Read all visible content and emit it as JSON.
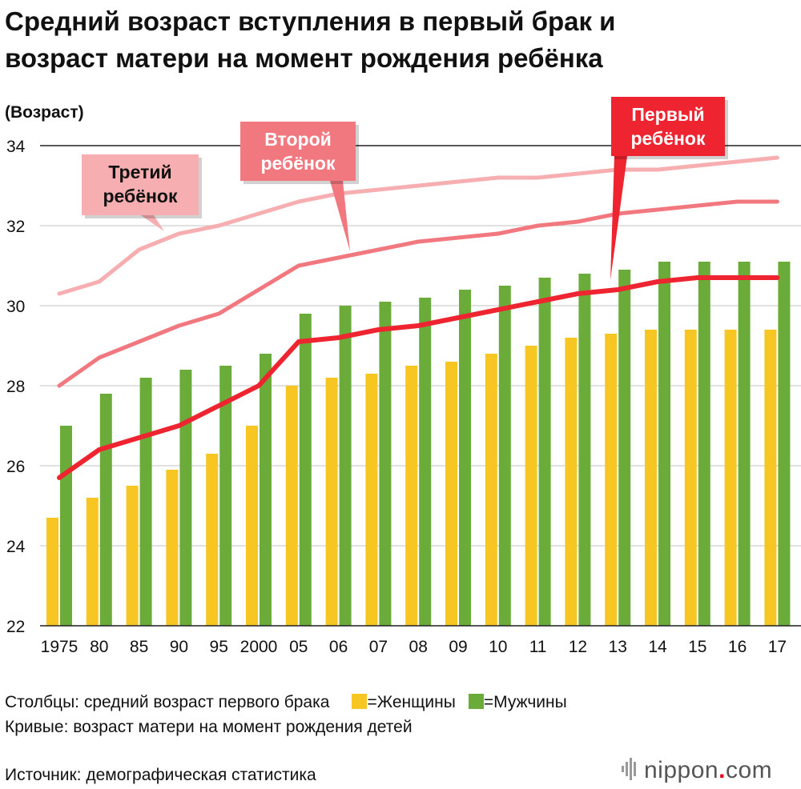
{
  "title_lines": [
    "Средний возраст вступления в первый брак и",
    "возраст матери на момент рождения ребёнка"
  ],
  "chart_data": {
    "type": "bar",
    "ylabel": "(Возраст)",
    "ylim": [
      22,
      34
    ],
    "yticks": [
      22,
      24,
      26,
      28,
      30,
      32,
      34
    ],
    "grid": true,
    "categories": [
      "1975",
      "80",
      "85",
      "90",
      "95",
      "2000",
      "05",
      "06",
      "07",
      "08",
      "09",
      "10",
      "11",
      "12",
      "13",
      "14",
      "15",
      "16",
      "17"
    ],
    "bar_series": [
      {
        "key": "women",
        "color": "#f7c623",
        "values": [
          24.7,
          25.2,
          25.5,
          25.9,
          26.3,
          27.0,
          28.0,
          28.2,
          28.3,
          28.5,
          28.6,
          28.8,
          29.0,
          29.2,
          29.3,
          29.4,
          29.4,
          29.4,
          29.4
        ]
      },
      {
        "key": "men",
        "color": "#6bab3a",
        "values": [
          27.0,
          27.8,
          28.2,
          28.4,
          28.5,
          28.8,
          29.8,
          30.0,
          30.1,
          30.2,
          30.4,
          30.5,
          30.7,
          30.8,
          30.9,
          31.1,
          31.1,
          31.1,
          31.1
        ]
      }
    ],
    "line_series": [
      {
        "key": "third",
        "name_lines": [
          "Третий",
          "ребёнок"
        ],
        "color": "#f7aeb0",
        "text_color": "#111111",
        "values": [
          30.3,
          30.6,
          31.4,
          31.8,
          32.0,
          32.3,
          32.6,
          32.8,
          32.9,
          33.0,
          33.1,
          33.2,
          33.2,
          33.3,
          33.4,
          33.4,
          33.5,
          33.6,
          33.7
        ]
      },
      {
        "key": "second",
        "name_lines": [
          "Второй",
          "ребёнок"
        ],
        "color": "#f2787f",
        "text_color": "#ffffff",
        "values": [
          28.0,
          28.7,
          29.1,
          29.5,
          29.8,
          30.4,
          31.0,
          31.2,
          31.4,
          31.6,
          31.7,
          31.8,
          32.0,
          32.1,
          32.3,
          32.4,
          32.5,
          32.6,
          32.6
        ]
      },
      {
        "key": "first",
        "name_lines": [
          "Первый",
          "ребёнок"
        ],
        "color": "#ee2530",
        "text_color": "#ffffff",
        "values": [
          25.7,
          26.4,
          26.7,
          27.0,
          27.5,
          28.0,
          29.1,
          29.2,
          29.4,
          29.5,
          29.7,
          29.9,
          30.1,
          30.3,
          30.4,
          30.6,
          30.7,
          30.7,
          30.7
        ]
      }
    ]
  },
  "legend": {
    "bars_label": "Столбцы: средний возраст первого брака",
    "women_label": "=Женщины",
    "men_label": "=Мужчины",
    "curves_label": "Кривые: возраст матери на момент рождения детей",
    "women_color": "#f7c623",
    "men_color": "#6bab3a"
  },
  "source": "Источник: демографическая статистика",
  "logo": {
    "name": "nippon",
    "dot": ".",
    "domain": "com",
    "icon": "nippon-logo-mark"
  }
}
